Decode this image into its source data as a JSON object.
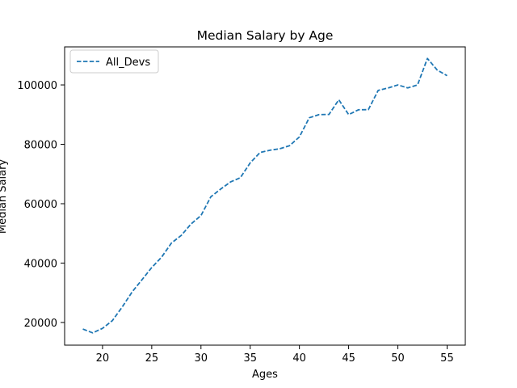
{
  "chart_data": {
    "type": "line",
    "title": "Median Salary by Age",
    "xlabel": "Ages",
    "ylabel": "Median Salary",
    "xlim": [
      16.15,
      56.85
    ],
    "ylim": [
      12358,
      112808
    ],
    "xticks": [
      20,
      25,
      30,
      35,
      40,
      45,
      50,
      55
    ],
    "yticks": [
      20000,
      40000,
      60000,
      80000,
      100000
    ],
    "grid": false,
    "legend": {
      "placement": "top-left"
    },
    "x": [
      18,
      19,
      20,
      21,
      22,
      23,
      24,
      25,
      26,
      27,
      28,
      29,
      30,
      31,
      32,
      33,
      34,
      35,
      36,
      37,
      38,
      39,
      40,
      41,
      42,
      43,
      44,
      45,
      46,
      47,
      48,
      49,
      50,
      51,
      52,
      53,
      54,
      55
    ],
    "series": [
      {
        "name": "All_Devs",
        "color": "#1f77b4",
        "line_style": "dashed",
        "values": [
          17784,
          16500,
          18012,
          20628,
          25206,
          30252,
          34368,
          38496,
          42000,
          46752,
          49320,
          53200,
          56000,
          62316,
          64928,
          67317,
          68748,
          73752,
          77232,
          78000,
          78508,
          79536,
          82488,
          88935,
          90000,
          90056,
          95000,
          90000,
          91633,
          91660,
          98150,
          98964,
          100000,
          98988,
          100000,
          108923,
          105000,
          103117
        ]
      }
    ]
  }
}
